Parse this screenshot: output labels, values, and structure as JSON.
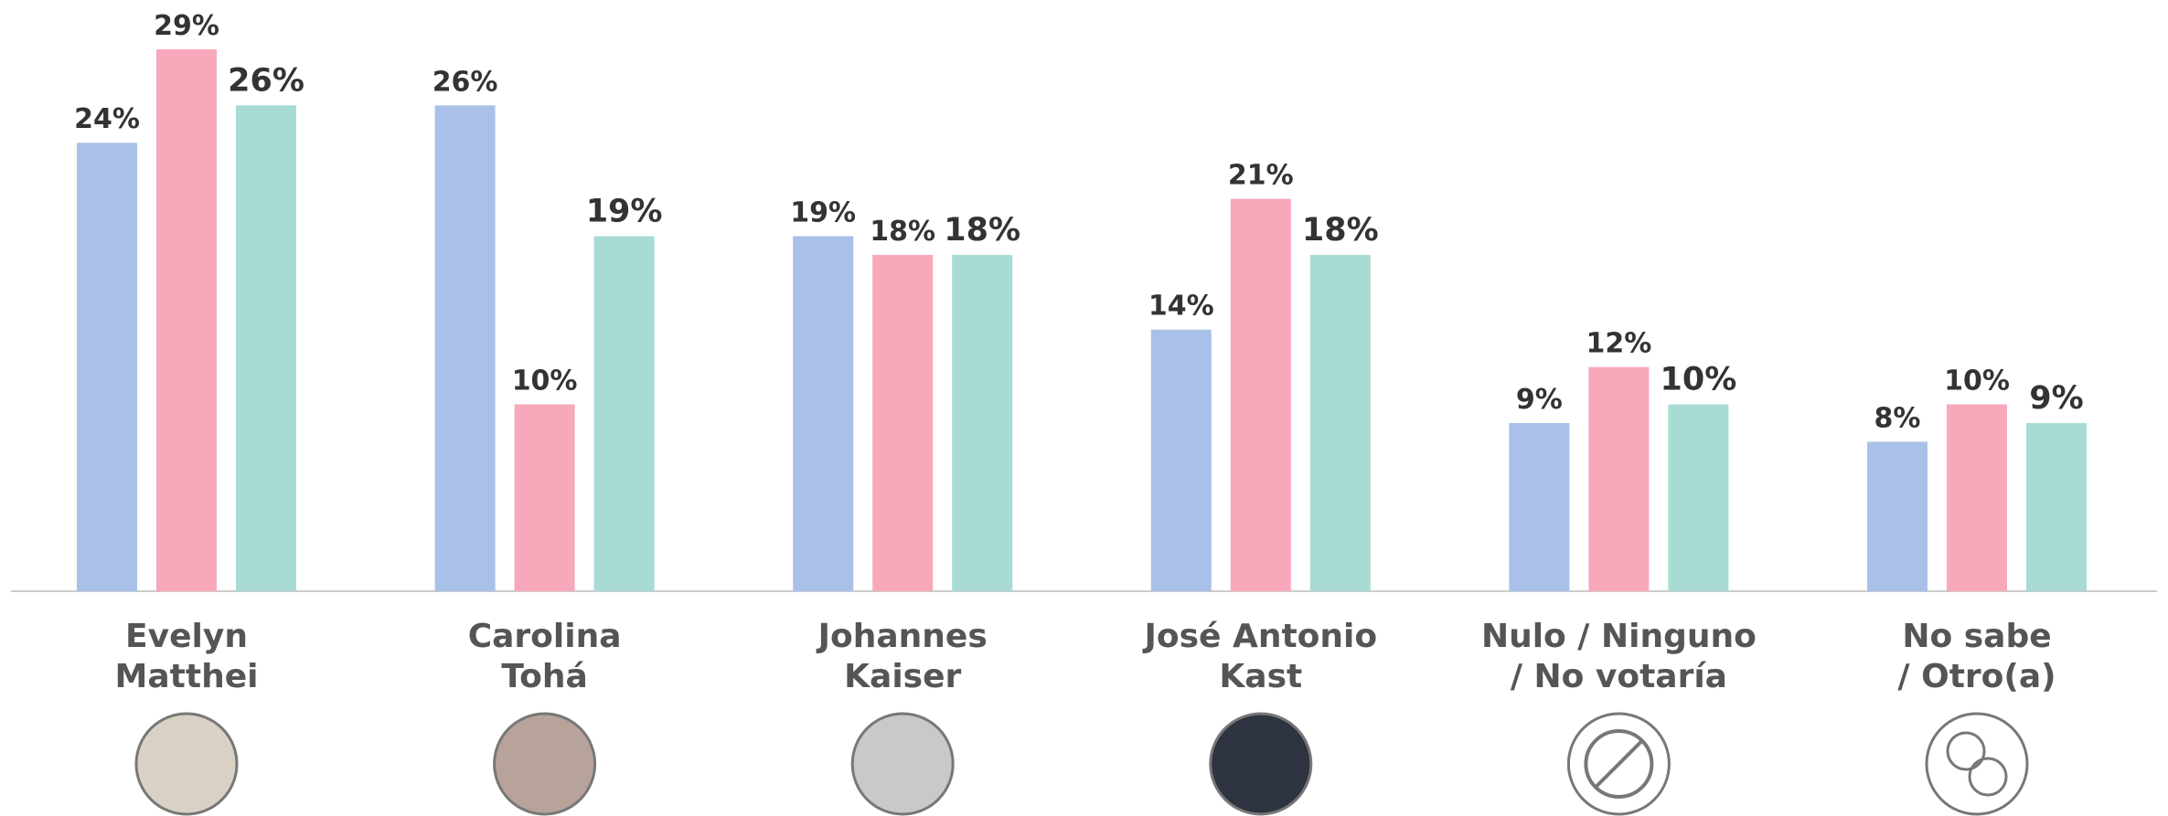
{
  "chart_data": {
    "type": "bar",
    "categories": [
      "Evelyn\nMatthei",
      "Carolina\nTohá",
      "Johannes\nKaiser",
      "José Antonio\nKast",
      "Nulo / Ninguno\n/ No votaría",
      "No sabe\n/ Otro(a)"
    ],
    "series": [
      {
        "color": "#a9c1e9",
        "values": [
          24,
          26,
          19,
          14,
          9,
          8
        ],
        "value_labels": [
          "24%",
          "26%",
          "19%",
          "14%",
          "9%",
          "8%"
        ]
      },
      {
        "color": "#f8a8bb",
        "values": [
          29,
          10,
          18,
          21,
          12,
          10
        ],
        "value_labels": [
          "29%",
          "10%",
          "18%",
          "21%",
          "12%",
          "10%"
        ]
      },
      {
        "color": "#a8dbd3",
        "values": [
          26,
          19,
          18,
          18,
          10,
          9
        ],
        "value_labels": [
          "26%",
          "19%",
          "18%",
          "18%",
          "10%",
          "9%"
        ]
      }
    ]
  }
}
